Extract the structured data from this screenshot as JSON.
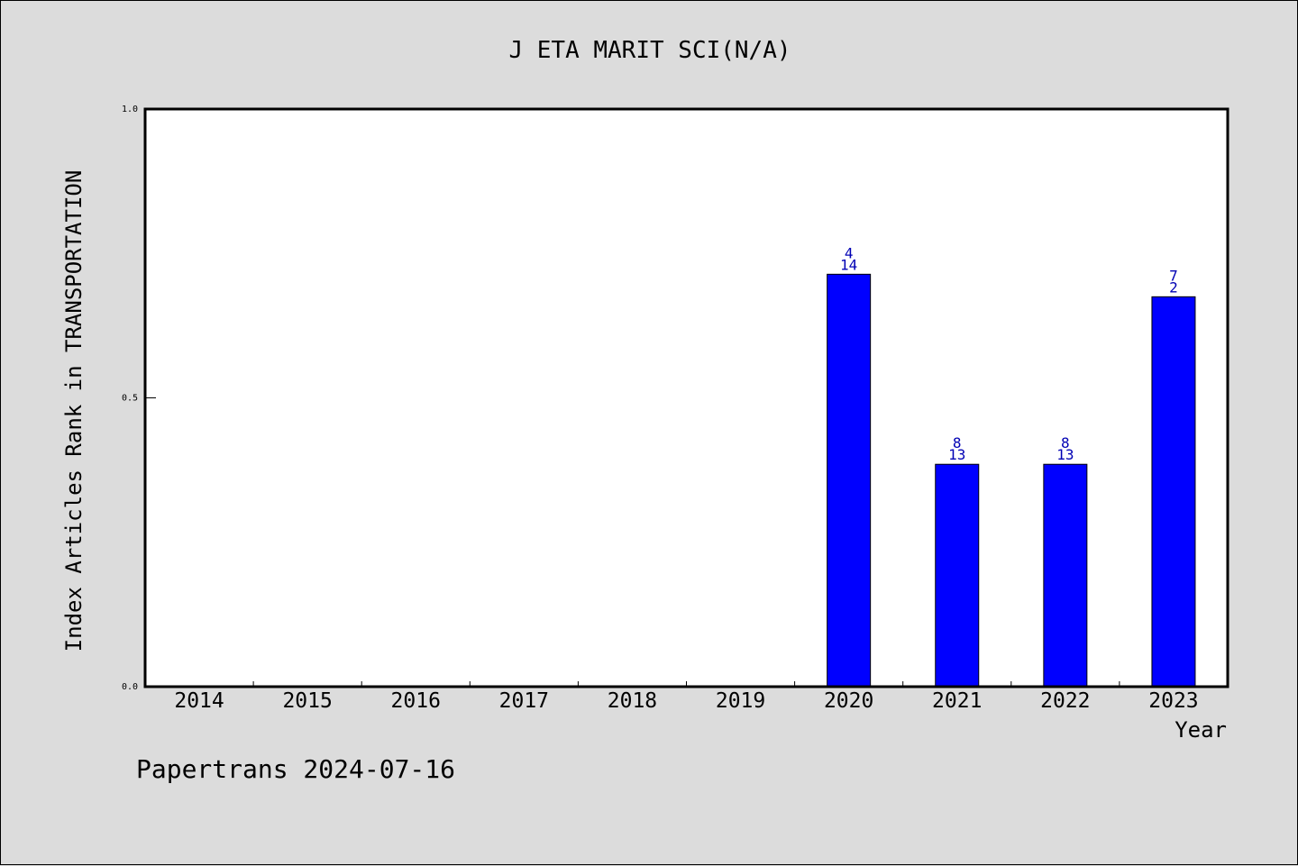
{
  "chart_data": {
    "type": "bar",
    "title": "J ETA MARIT SCI(N/A)",
    "xlabel": "Year",
    "ylabel": "Index Articles Rank in TRANSPORTATION",
    "ylim": [
      0,
      1.0
    ],
    "yticks": [
      "0.0",
      "0.5",
      "1.0"
    ],
    "categories": [
      "2014",
      "2015",
      "2016",
      "2017",
      "2018",
      "2019",
      "2020",
      "2021",
      "2022",
      "2023"
    ],
    "values": [
      null,
      null,
      null,
      null,
      null,
      null,
      0.714,
      0.385,
      0.385,
      0.675
    ],
    "labels_top": [
      "",
      "",
      "",
      "",
      "",
      "",
      "4",
      "8",
      "8",
      "7"
    ],
    "labels_bottom": [
      "",
      "",
      "",
      "",
      "",
      "",
      "14",
      "13",
      "13",
      "2"
    ],
    "bar_color": "#0000ff",
    "label_color": "#0000b4",
    "grid": false
  },
  "footer": {
    "text": "Papertrans 2024-07-16"
  }
}
